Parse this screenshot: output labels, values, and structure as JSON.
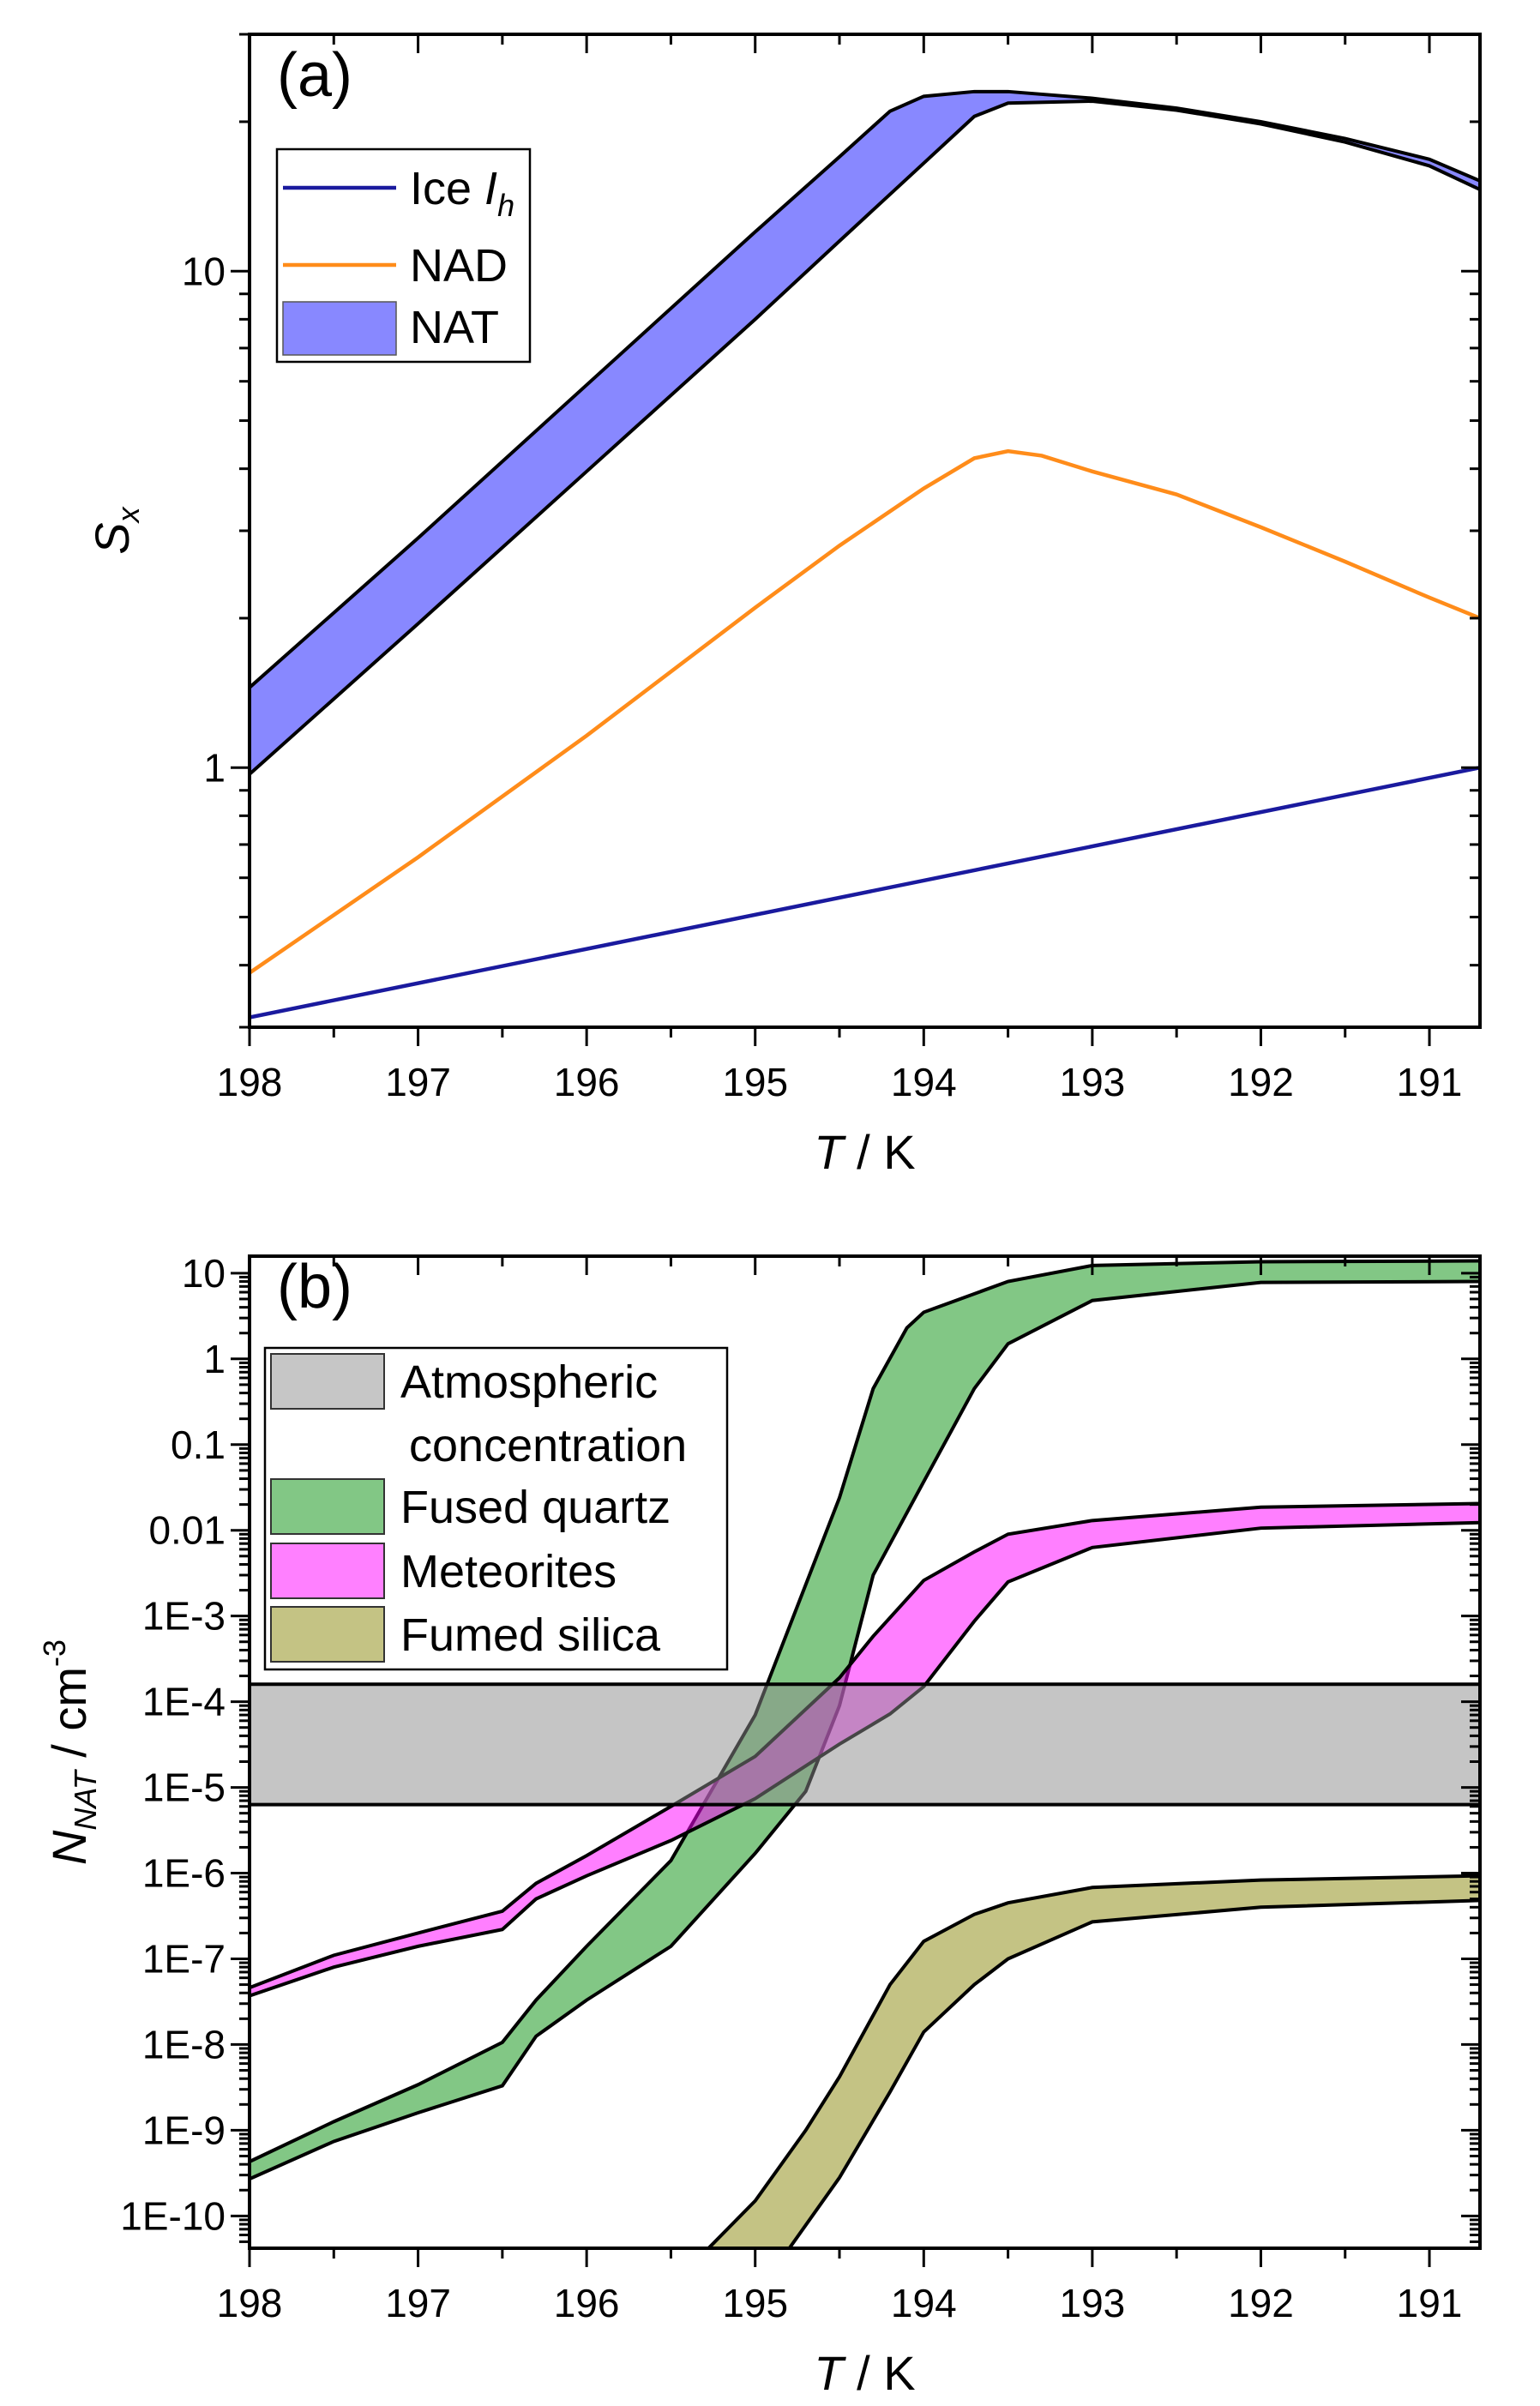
{
  "colors": {
    "ice": "#1a1a9e",
    "nad": "#ff8c1a",
    "nat": "#8888ff",
    "atmospheric": "#8c8c8c",
    "fused_quartz": "#82c785",
    "meteorites": "#ff00ff",
    "fumed_silica": "#c4c384"
  },
  "chart_data": [
    {
      "type": "line",
      "panel_label": "(a)",
      "xlabel": {
        "italic": "T",
        "rest": " / K"
      },
      "ylabel": {
        "main": "S",
        "sub": "x"
      },
      "xlim": [
        198,
        190.7
      ],
      "x_reversed": true,
      "ylim": [
        0.3,
        30
      ],
      "yscale": "log",
      "xticks": [
        198,
        197,
        196,
        195,
        194,
        193,
        192,
        191
      ],
      "xtick_labels": [
        "198",
        "197",
        "196",
        "195",
        "194",
        "193",
        "192",
        "191"
      ],
      "yticks": [
        1,
        10
      ],
      "ytick_labels": [
        "1",
        "10"
      ],
      "legend": {
        "placement": "top-left",
        "entries": [
          {
            "key": "ice",
            "label": "Ice ",
            "label_italic": "I",
            "label_sub": "h",
            "kind": "line"
          },
          {
            "key": "nad",
            "label": "NAD",
            "kind": "line"
          },
          {
            "key": "nat",
            "label": "NAT",
            "kind": "band"
          }
        ]
      },
      "series": [
        {
          "key": "ice",
          "name": "Ice Ih",
          "x": [
            198,
            190.7
          ],
          "y": [
            0.314,
            1.0
          ]
        },
        {
          "key": "nad",
          "name": "NAD",
          "x": [
            198,
            197,
            196,
            195,
            194.5,
            194,
            193.7,
            193.5,
            193.3,
            193,
            192.5,
            192,
            191.5,
            191,
            190.7
          ],
          "y": [
            0.386,
            0.66,
            1.16,
            2.1,
            2.8,
            3.65,
            4.2,
            4.34,
            4.25,
            3.95,
            3.55,
            3.05,
            2.6,
            2.2,
            2.0
          ]
        }
      ],
      "bands": [
        {
          "key": "nat",
          "name": "NAT",
          "upper": {
            "x": [
              198,
              197,
              196,
              195,
              194.5,
              194.2,
              194,
              193.7,
              193.5,
              193,
              192.5,
              192,
              191.5,
              191,
              190.7
            ],
            "y": [
              1.45,
              2.9,
              5.9,
              12,
              17,
              21,
              22.5,
              23,
              23,
              22.3,
              21.3,
              20,
              18.5,
              16.8,
              15.2
            ]
          },
          "lower": {
            "x": [
              198,
              197,
              196,
              195,
              194.5,
              194,
              193.7,
              193.5,
              193,
              192.5,
              192,
              191.5,
              191,
              190.7
            ],
            "y": [
              0.97,
              1.95,
              3.95,
              8,
              11.5,
              16.5,
              20.5,
              21.8,
              22,
              21.1,
              19.8,
              18.2,
              16.3,
              14.6
            ]
          }
        }
      ]
    },
    {
      "type": "area",
      "panel_label": "(b)",
      "xlabel": {
        "italic": "T",
        "rest": " / K"
      },
      "ylabel": {
        "main": "N",
        "sub": "NAT",
        "rest": " / cm",
        "sup": "-3"
      },
      "xlim": [
        198,
        190.7
      ],
      "x_reversed": true,
      "ylim": [
        4.2e-11,
        15.8
      ],
      "yscale": "log",
      "xticks": [
        198,
        197,
        196,
        195,
        194,
        193,
        192,
        191
      ],
      "xtick_labels": [
        "198",
        "197",
        "196",
        "195",
        "194",
        "193",
        "192",
        "191"
      ],
      "yticks": [
        10,
        1,
        0.1,
        0.01,
        0.001,
        0.0001,
        1e-05,
        1e-06,
        1e-07,
        1e-08,
        1e-09,
        1e-10
      ],
      "ytick_labels": [
        "10",
        "1",
        "0.1",
        "0.01",
        "1E-3",
        "1E-4",
        "1E-5",
        "1E-6",
        "1E-7",
        "1E-8",
        "1E-9",
        "1E-10"
      ],
      "legend": {
        "placement": "top-left",
        "entries": [
          {
            "key": "atmospheric",
            "label": "Atmospheric",
            "label2": "concentration"
          },
          {
            "key": "fused_quartz",
            "label": "Fused quartz"
          },
          {
            "key": "meteorites",
            "label": "Meteorites"
          },
          {
            "key": "fumed_silica",
            "label": "Fumed silica"
          }
        ]
      },
      "bands": [
        {
          "key": "fused_quartz",
          "name": "Fused quartz",
          "upper": {
            "x": [
              198,
              197.5,
              197,
              196.5,
              196.3,
              196,
              195.5,
              195,
              194.5,
              194.3,
              194.1,
              194,
              193.5,
              193,
              192,
              190.7
            ],
            "y": [
              4.3e-10,
              1.26e-09,
              3.4e-09,
              1.06e-08,
              3.3e-08,
              1.4e-07,
              1.4e-06,
              7e-05,
              0.024,
              0.45,
              2.3,
              3.5,
              8,
              12.3,
              13.6,
              13.9
            ]
          },
          "lower": {
            "x": [
              198,
              197.5,
              197,
              196.5,
              196.3,
              196,
              195.5,
              195,
              194.7,
              194.5,
              194.3,
              194,
              193.7,
              193.5,
              193,
              192,
              190.7
            ],
            "y": [
              2.7e-10,
              7.4e-10,
              1.6e-09,
              3.3e-09,
              1.25e-08,
              3.3e-08,
              1.4e-07,
              1.7e-06,
              9e-06,
              9e-05,
              0.003,
              0.037,
              0.45,
              1.5,
              4.8,
              7.8,
              8
            ]
          }
        },
        {
          "key": "meteorites",
          "name": "Meteorites",
          "upper": {
            "x": [
              198,
              197.5,
              197,
              196.5,
              196.3,
              196,
              195.5,
              195,
              194.5,
              194.3,
              194,
              193.7,
              193.5,
              193,
              192,
              190.7
            ],
            "y": [
              4.6e-08,
              1.1e-07,
              2e-07,
              3.6e-07,
              7.6e-07,
              1.6e-06,
              6e-06,
              2.3e-05,
              0.00019,
              0.00058,
              0.0026,
              0.0056,
              0.009,
              0.013,
              0.0186,
              0.0205
            ]
          },
          "lower": {
            "x": [
              198,
              197.5,
              197,
              196.5,
              196.3,
              196,
              195.5,
              195,
              194.5,
              194.2,
              194,
              193.7,
              193.5,
              193,
              192,
              190.7
            ],
            "y": [
              3.7e-08,
              8e-08,
              1.4e-07,
              2.2e-07,
              5e-07,
              9.3e-07,
              2.4e-06,
              7.4e-06,
              3.2e-05,
              7.2e-05,
              0.00015,
              0.00087,
              0.0025,
              0.0063,
              0.0106,
              0.0123
            ]
          }
        },
        {
          "key": "fumed_silica",
          "name": "Fumed silica",
          "upper": {
            "x": [
              195.35,
              195,
              194.7,
              194.5,
              194.2,
              194,
              193.7,
              193.5,
              193,
              192,
              190.7
            ],
            "y": [
              3e-11,
              1.5e-10,
              1e-09,
              4.2e-09,
              5e-08,
              1.6e-07,
              3.3e-07,
              4.5e-07,
              6.8e-07,
              8.3e-07,
              9.3e-07
            ]
          },
          "lower": {
            "x": [
              194.85,
              194.5,
              194.2,
              194,
              193.7,
              193.5,
              193,
              192,
              190.7
            ],
            "y": [
              3e-11,
              2.8e-10,
              2.8e-09,
              1.4e-08,
              5e-08,
              1e-07,
              2.7e-07,
              4e-07,
              4.8e-07
            ]
          }
        },
        {
          "key": "atmospheric",
          "name": "Atmospheric concentration",
          "upper": {
            "x": [
              198,
              190.7
            ],
            "y": [
              0.00016,
              0.00016
            ]
          },
          "lower": {
            "x": [
              198,
              190.7
            ],
            "y": [
              6.3e-06,
              6.3e-06
            ]
          }
        }
      ]
    }
  ]
}
